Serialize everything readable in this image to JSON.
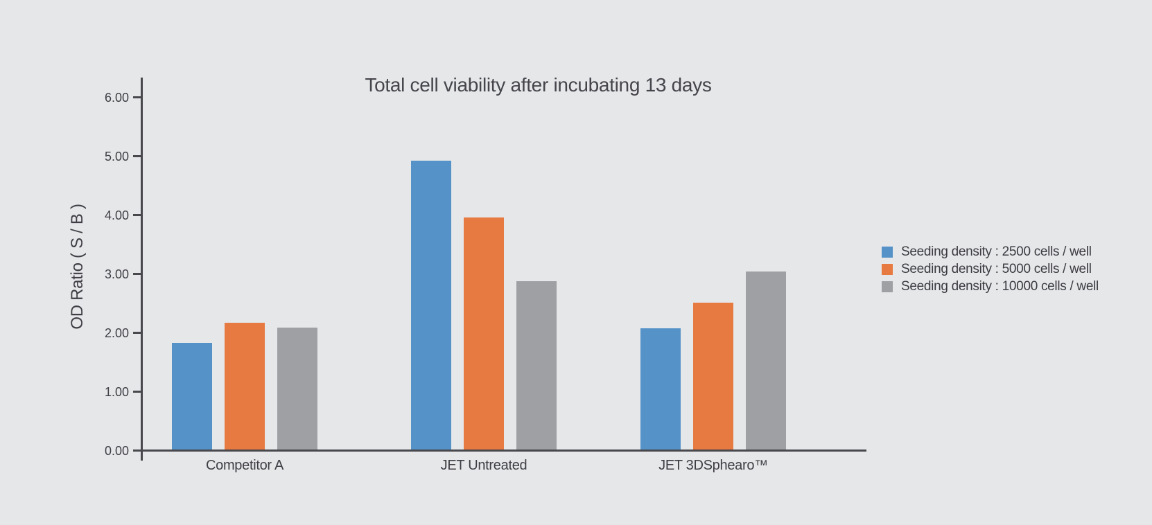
{
  "page": {
    "background": "#E6E7E9"
  },
  "chart_data": {
    "type": "bar",
    "title": "Total cell viability after incubating 13 days",
    "ylabel": "OD Ratio ( S / B )",
    "xlabel": "",
    "categories": [
      "Competitor A",
      "JET Untreated",
      "JET 3DSphearo™"
    ],
    "series": [
      {
        "name": "Seeding density : 2500 cells / well",
        "color": "#5492C8",
        "values": [
          1.83,
          4.93,
          2.08
        ]
      },
      {
        "name": "Seeding density : 5000 cells / well",
        "color": "#E67A41",
        "values": [
          2.18,
          3.97,
          2.52
        ]
      },
      {
        "name": "Seeding density : 10000 cells / well",
        "color": "#9FA0A4",
        "values": [
          2.09,
          2.88,
          3.05
        ]
      }
    ],
    "ylim": [
      0,
      6
    ],
    "yticks": [
      "0.00",
      "1.00",
      "2.00",
      "3.00",
      "4.00",
      "5.00",
      "6.00"
    ],
    "grid": false,
    "legend_position": "right"
  },
  "colors": {
    "background": "#E6E7E9",
    "axis": "#48484D",
    "text": "#3E3E44",
    "title": "#45454B",
    "series": [
      "#5492C8",
      "#E67A41",
      "#9FA0A4"
    ]
  }
}
